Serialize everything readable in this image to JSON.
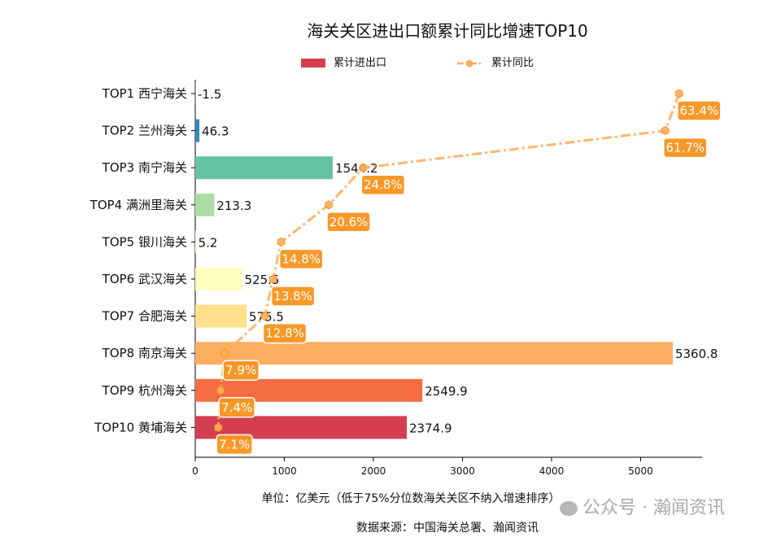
{
  "chart_data": {
    "type": "bar",
    "orientation": "horizontal",
    "title": "海关关区进出口额累计同比增速TOP10",
    "xlabel": "单位：亿美元（低于75%分位数海关关区不纳入增速排序）",
    "source": "数据来源：中国海关总署、瀚闻资讯",
    "xlim": [
      0,
      5690
    ],
    "xticks": [
      "0",
      "1000",
      "2000",
      "3000",
      "4000",
      "5000"
    ],
    "grid": false,
    "legend_position": "top-center",
    "categories": [
      "TOP1 西宁海关",
      "TOP2 兰州海关",
      "TOP3 南宁海关",
      "TOP4 满洲里海关",
      "TOP5 银川海关",
      "TOP6 武汉海关",
      "TOP7 合肥海关",
      "TOP8 南京海关",
      "TOP9 杭州海关",
      "TOP10 黄埔海关"
    ],
    "series": [
      {
        "name": "累计进出口",
        "type": "bar",
        "values": [
          -1.5,
          46.3,
          1544.2,
          213.3,
          5.2,
          525.5,
          575.5,
          5360.8,
          2549.9,
          2374.9
        ],
        "labels": [
          "-1.5",
          "46.3",
          "1544.2",
          "213.3",
          "5.2",
          "525.5",
          "575.5",
          "5360.8",
          "2549.9",
          "2374.9"
        ],
        "colors": [
          "#5e4fa2",
          "#3288bd",
          "#66c2a5",
          "#abdda4",
          "#e6f598",
          "#ffffbf",
          "#fee08b",
          "#fdae61",
          "#f46d43",
          "#d53e4f"
        ]
      },
      {
        "name": "累计同比",
        "type": "line",
        "unit": "%",
        "secondary_xlim": [
          4.3,
          66.2
        ],
        "values": [
          63.4,
          61.7,
          24.8,
          20.6,
          14.8,
          13.8,
          12.8,
          7.9,
          7.4,
          7.1
        ],
        "labels": [
          "63.4%",
          "61.7%",
          "24.8%",
          "20.6%",
          "14.8%",
          "13.8%",
          "12.8%",
          "7.9%",
          "7.4%",
          "7.1%"
        ],
        "color": "#fdae61",
        "label_color": "#f7941d"
      }
    ]
  },
  "watermark": "公众号 · 瀚闻资讯"
}
